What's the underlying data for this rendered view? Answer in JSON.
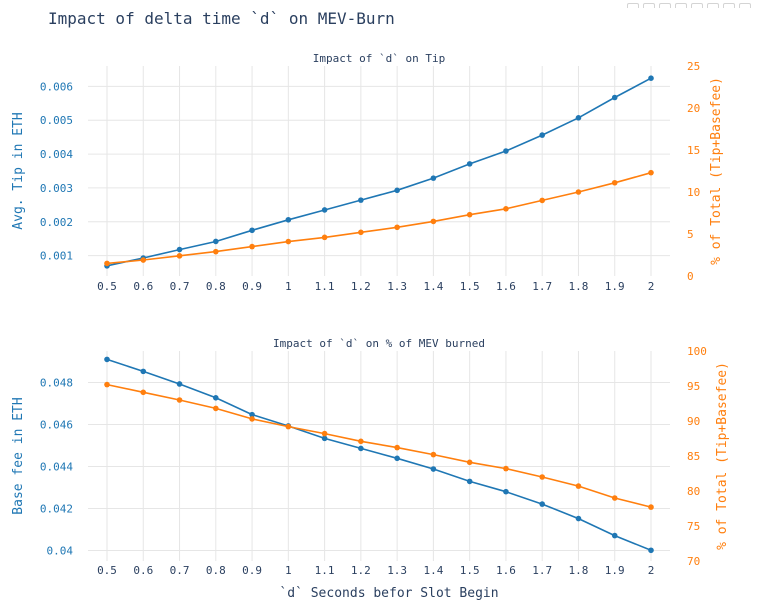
{
  "figure_title": "Impact of delta time `d` on MEV-Burn",
  "colors": {
    "blue": "#1f77b4",
    "orange": "#ff7f0e",
    "text": "#2a3f5f",
    "grid": "#e6e6e6"
  },
  "modebar": {
    "icons": [
      "camera-icon",
      "zoom-icon",
      "pan-icon",
      "select-icon",
      "zoom-in-icon",
      "zoom-out-icon",
      "autoscale-icon",
      "reset-icon"
    ]
  },
  "chart_data": [
    {
      "type": "line",
      "title": "Impact of `d` on Tip",
      "x": [
        "0.5",
        "0.6",
        "0.7",
        "0.8",
        "0.9",
        "1",
        "1.1",
        "1.2",
        "1.3",
        "1.4",
        "1.5",
        "1.6",
        "1.7",
        "1.8",
        "1.9",
        "2"
      ],
      "xlabel": "",
      "ylabel": "Avg. Tip in ETH",
      "y2label": "% of Total (Tip+Basefee)",
      "ylim": [
        0.0004,
        0.0066
      ],
      "y2lim": [
        0,
        25
      ],
      "yticks": [
        "0.001",
        "0.002",
        "0.003",
        "0.004",
        "0.005",
        "0.006"
      ],
      "y2ticks": [
        "0",
        "5",
        "10",
        "15",
        "20",
        "25"
      ],
      "grid": true,
      "series": [
        {
          "axis": "y",
          "color": "#1f77b4",
          "values": [
            0.0007,
            0.00093,
            0.00118,
            0.00142,
            0.00175,
            0.00206,
            0.00235,
            0.00264,
            0.00293,
            0.00329,
            0.00371,
            0.00409,
            0.00456,
            0.00507,
            0.00567,
            0.00624
          ]
        },
        {
          "axis": "y2",
          "color": "#ff7f0e",
          "values": [
            1.5,
            1.9,
            2.4,
            2.9,
            3.5,
            4.1,
            4.6,
            5.2,
            5.8,
            6.5,
            7.3,
            8.0,
            9.0,
            10.0,
            11.1,
            12.3
          ]
        }
      ]
    },
    {
      "type": "line",
      "title": "Impact of `d` on % of MEV burned",
      "x": [
        "0.5",
        "0.6",
        "0.7",
        "0.8",
        "0.9",
        "1",
        "1.1",
        "1.2",
        "1.3",
        "1.4",
        "1.5",
        "1.6",
        "1.7",
        "1.8",
        "1.9",
        "2"
      ],
      "xlabel": "`d` Seconds befor Slot Begin",
      "ylabel": "Base fee in ETH",
      "y2label": "% of Total (Tip+Basefee)",
      "ylim": [
        0.0395,
        0.0495
      ],
      "y2lim": [
        70,
        100
      ],
      "yticks": [
        "0.04",
        "0.042",
        "0.044",
        "0.046",
        "0.048"
      ],
      "y2ticks": [
        "70",
        "75",
        "80",
        "85",
        "90",
        "95",
        "100"
      ],
      "grid": true,
      "series": [
        {
          "axis": "y",
          "color": "#1f77b4",
          "values": [
            0.0491,
            0.04853,
            0.04793,
            0.04727,
            0.04647,
            0.04593,
            0.04534,
            0.04486,
            0.04439,
            0.04388,
            0.04329,
            0.0428,
            0.04221,
            0.04152,
            0.04071,
            0.04001
          ]
        },
        {
          "axis": "y2",
          "color": "#ff7f0e",
          "values": [
            95.2,
            94.1,
            93.0,
            91.8,
            90.3,
            89.2,
            88.2,
            87.1,
            86.2,
            85.2,
            84.1,
            83.2,
            82.0,
            80.7,
            79.0,
            77.7
          ]
        }
      ]
    }
  ]
}
